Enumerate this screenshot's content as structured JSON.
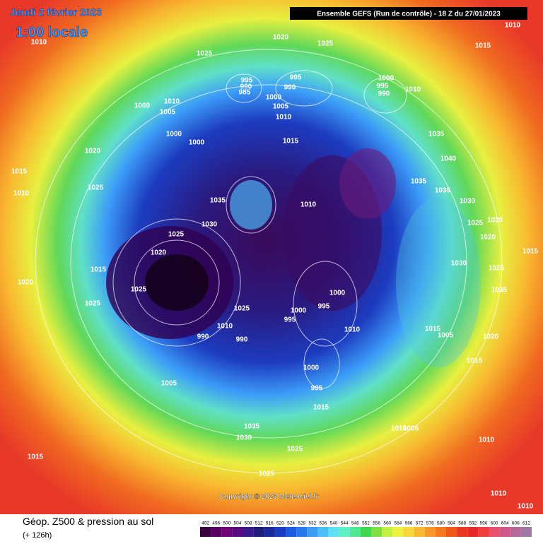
{
  "header": {
    "date": "Jeudi 2 février 2023",
    "local_time": "1:00 locale",
    "model": "Ensemble GEFS  (Run de contrôle)  -  18 Z du 27/01/2023"
  },
  "copyright": "Copyright © 2023 Meteociel.fr",
  "footer": {
    "title": "Géop. Z500 & pression au sol",
    "lead": "(+ 126h)"
  },
  "colorbar": {
    "values": [
      492,
      496,
      500,
      504,
      508,
      512,
      516,
      520,
      524,
      528,
      532,
      536,
      540,
      544,
      548,
      552,
      556,
      560,
      564,
      568,
      572,
      576,
      580,
      584,
      588,
      592,
      596,
      600,
      604,
      608,
      612
    ],
    "colors": [
      "#3a0040",
      "#560060",
      "#700078",
      "#5a0a80",
      "#3a1a8a",
      "#1e1e7a",
      "#1a2a9a",
      "#1c3cc0",
      "#1e5ae0",
      "#2a78f0",
      "#3c9cf8",
      "#4cc0f8",
      "#60e0f0",
      "#60f0c8",
      "#50e890",
      "#40d850",
      "#80e040",
      "#c0f040",
      "#f0f040",
      "#f8d838",
      "#f8b830",
      "#f89828",
      "#f87820",
      "#f05818",
      "#e83820",
      "#e82828",
      "#f03c3c",
      "#e8506c",
      "#d05888",
      "#b86898",
      "#a078a8"
    ]
  },
  "isobar_labels": [
    "1010",
    "1020",
    "1025",
    "1010",
    "1015",
    "1025",
    "995",
    "990",
    "985",
    "995",
    "990",
    "1000",
    "1005",
    "1010",
    "1000",
    "995",
    "990",
    "1010",
    "1000",
    "1005",
    "1010",
    "1000",
    "1000",
    "1015",
    "1035",
    "1040",
    "1020",
    "1015",
    "1010",
    "1025",
    "1035",
    "1035",
    "1030",
    "1035",
    "1010",
    "1025",
    "1020",
    "1030",
    "1025",
    "1020",
    "1015",
    "1020",
    "1015",
    "1030",
    "1025",
    "1020",
    "1025",
    "1000",
    "1035",
    "1025",
    "1025",
    "1000",
    "995",
    "995",
    "1010",
    "1010",
    "1015",
    "1005",
    "1020",
    "990",
    "990",
    "1000",
    "995",
    "1015",
    "1005",
    "1015",
    "1010",
    "1005",
    "1035",
    "1030",
    "1010",
    "1025",
    "1015",
    "1025",
    "1010",
    "1010"
  ]
}
